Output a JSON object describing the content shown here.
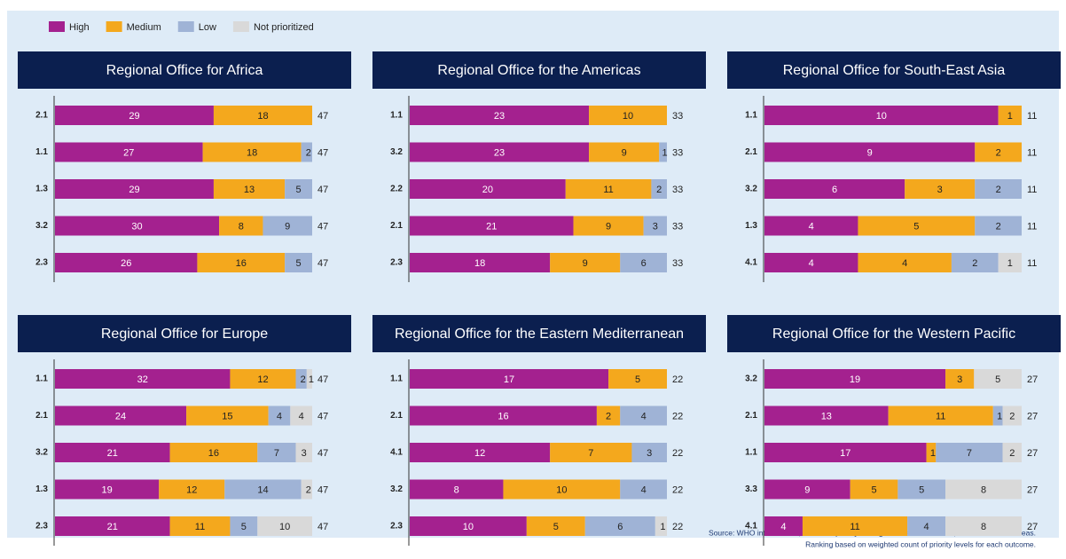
{
  "chart_data": [
    {
      "type": "bar",
      "title": "Regional Office for Africa",
      "categories": [
        "2.1",
        "1.1",
        "1.3",
        "3.2",
        "2.3"
      ],
      "series": [
        {
          "name": "High",
          "color": "#a4218f",
          "values": [
            29,
            27,
            29,
            30,
            26
          ]
        },
        {
          "name": "Medium",
          "color": "#f4a81d",
          "values": [
            18,
            18,
            13,
            8,
            16
          ]
        },
        {
          "name": "Low",
          "color": "#9fb3d6",
          "values": [
            0,
            2,
            5,
            9,
            5
          ]
        },
        {
          "name": "Not prioritized",
          "color": "#d9d9d9",
          "values": [
            0,
            0,
            0,
            0,
            0
          ]
        }
      ],
      "totals": [
        47,
        47,
        47,
        47,
        47
      ]
    },
    {
      "type": "bar",
      "title": "Regional Office for the Americas",
      "categories": [
        "1.1",
        "3.2",
        "2.2",
        "2.1",
        "2.3"
      ],
      "series": [
        {
          "name": "High",
          "color": "#a4218f",
          "values": [
            23,
            23,
            20,
            21,
            18
          ]
        },
        {
          "name": "Medium",
          "color": "#f4a81d",
          "values": [
            10,
            9,
            11,
            9,
            9
          ]
        },
        {
          "name": "Low",
          "color": "#9fb3d6",
          "values": [
            0,
            1,
            2,
            3,
            6
          ]
        },
        {
          "name": "Not prioritized",
          "color": "#d9d9d9",
          "values": [
            0,
            0,
            0,
            0,
            0
          ]
        }
      ],
      "totals": [
        33,
        33,
        33,
        33,
        33
      ]
    },
    {
      "type": "bar",
      "title": "Regional Office for South-East Asia",
      "categories": [
        "1.1",
        "2.1",
        "3.2",
        "1.3",
        "4.1"
      ],
      "series": [
        {
          "name": "High",
          "color": "#a4218f",
          "values": [
            10,
            9,
            6,
            4,
            4
          ]
        },
        {
          "name": "Medium",
          "color": "#f4a81d",
          "values": [
            1,
            2,
            3,
            5,
            4
          ]
        },
        {
          "name": "Low",
          "color": "#9fb3d6",
          "values": [
            0,
            0,
            2,
            2,
            2
          ]
        },
        {
          "name": "Not prioritized",
          "color": "#d9d9d9",
          "values": [
            0,
            0,
            0,
            0,
            1
          ]
        }
      ],
      "totals": [
        11,
        11,
        11,
        11,
        11
      ]
    },
    {
      "type": "bar",
      "title": "Regional Office for Europe",
      "categories": [
        "1.1",
        "2.1",
        "3.2",
        "1.3",
        "2.3"
      ],
      "series": [
        {
          "name": "High",
          "color": "#a4218f",
          "values": [
            32,
            24,
            21,
            19,
            21
          ]
        },
        {
          "name": "Medium",
          "color": "#f4a81d",
          "values": [
            12,
            15,
            16,
            12,
            11
          ]
        },
        {
          "name": "Low",
          "color": "#9fb3d6",
          "values": [
            2,
            4,
            7,
            14,
            5
          ]
        },
        {
          "name": "Not prioritized",
          "color": "#d9d9d9",
          "values": [
            1,
            4,
            3,
            2,
            10
          ]
        }
      ],
      "totals": [
        47,
        47,
        47,
        47,
        47
      ]
    },
    {
      "type": "bar",
      "title": "Regional Office for the Eastern Mediterranean",
      "categories": [
        "1.1",
        "2.1",
        "4.1",
        "3.2",
        "2.3"
      ],
      "series": [
        {
          "name": "High",
          "color": "#a4218f",
          "values": [
            17,
            16,
            12,
            8,
            10
          ]
        },
        {
          "name": "Medium",
          "color": "#f4a81d",
          "values": [
            5,
            2,
            7,
            10,
            5
          ]
        },
        {
          "name": "Low",
          "color": "#9fb3d6",
          "values": [
            0,
            4,
            3,
            4,
            6
          ]
        },
        {
          "name": "Not prioritized",
          "color": "#d9d9d9",
          "values": [
            0,
            0,
            0,
            0,
            1
          ]
        }
      ],
      "totals": [
        22,
        22,
        22,
        22,
        22
      ]
    },
    {
      "type": "bar",
      "title": "Regional Office for the Western Pacific",
      "categories": [
        "3.2",
        "2.1",
        "1.1",
        "3.3",
        "4.1"
      ],
      "series": [
        {
          "name": "High",
          "color": "#a4218f",
          "values": [
            19,
            13,
            17,
            9,
            4
          ]
        },
        {
          "name": "Medium",
          "color": "#f4a81d",
          "values": [
            3,
            11,
            1,
            5,
            11
          ]
        },
        {
          "name": "Low",
          "color": "#9fb3d6",
          "values": [
            0,
            1,
            7,
            5,
            4
          ]
        },
        {
          "name": "Not prioritized",
          "color": "#d9d9d9",
          "values": [
            5,
            2,
            2,
            8,
            8
          ]
        }
      ],
      "totals": [
        27,
        27,
        27,
        27,
        27
      ]
    }
  ],
  "source": [
    "Source: WHO internal data, results of priority-setting exercise in countries, territories and/or areas.",
    "Ranking based on weighted count of priority levels for each outcome."
  ]
}
